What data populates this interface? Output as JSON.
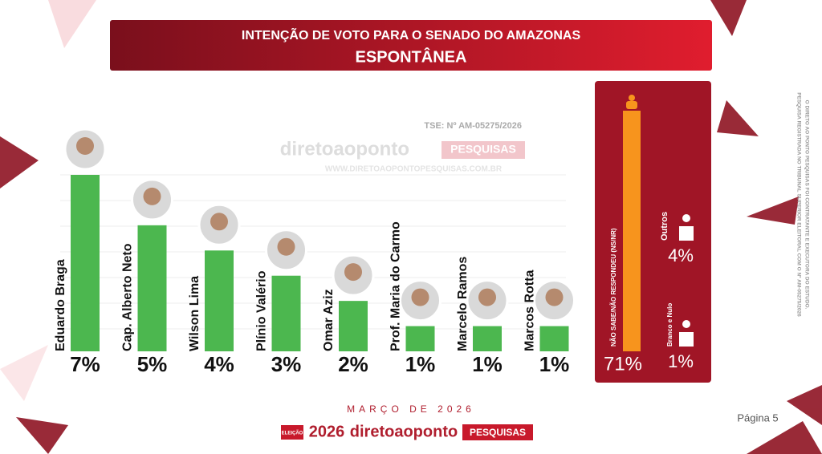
{
  "header": {
    "title": "INTENÇÃO DE VOTO PARA O SENADO DO AMAZONAS",
    "subtitle": "ESPONTÂNEA"
  },
  "registration": "TSE: Nº AM-05275/2026",
  "watermark": {
    "brand": "diretoaoponto",
    "tag": "PESQUISAS",
    "url": "WWW.DIRETOAOPONTOPESQUISAS.COM.BR"
  },
  "chart_data": [
    {
      "type": "bar",
      "categories": [
        "Eduardo Braga",
        "Cap. Alberto Neto",
        "Wilson Lima",
        "Plínio Valério",
        "Omar Aziz",
        "Prof. Maria  do Carmo",
        "Marcelo Ramos",
        "Marcos Rotta"
      ],
      "values": [
        7,
        5,
        4,
        3,
        2,
        1,
        1,
        1
      ],
      "value_labels": [
        "7%",
        "5%",
        "4%",
        "3%",
        "2%",
        "1%",
        "1%",
        "1%"
      ],
      "color": "#4cb74f",
      "ylim": [
        0,
        7
      ]
    },
    {
      "type": "side",
      "categories": [
        "NÃO SABE/NÃO RESPONDEU (NS/NR)",
        "Outros",
        "Branco e Nulo"
      ],
      "values": [
        71,
        4,
        1
      ],
      "value_labels": [
        "71%",
        "4%",
        "1%"
      ],
      "color": "#f7941d",
      "ylim": [
        0,
        71
      ]
    }
  ],
  "side_note": [
    "PESQUISA REGISTRADA NO TRIBUNAL SUPERIOR ELEITORAL COM O Nº AM-05275/2026",
    "O DIRETO AO PONTO PESQUISAS FOI CONTRATANTE E EXECUTORA DO ESTUDO."
  ],
  "footer": {
    "date": "MARÇO DE 2026",
    "badge": "ELEIÇÃO",
    "year": "2026",
    "brand": "diretoaoponto",
    "tag": "PESQUISAS",
    "page": "Página 5"
  }
}
